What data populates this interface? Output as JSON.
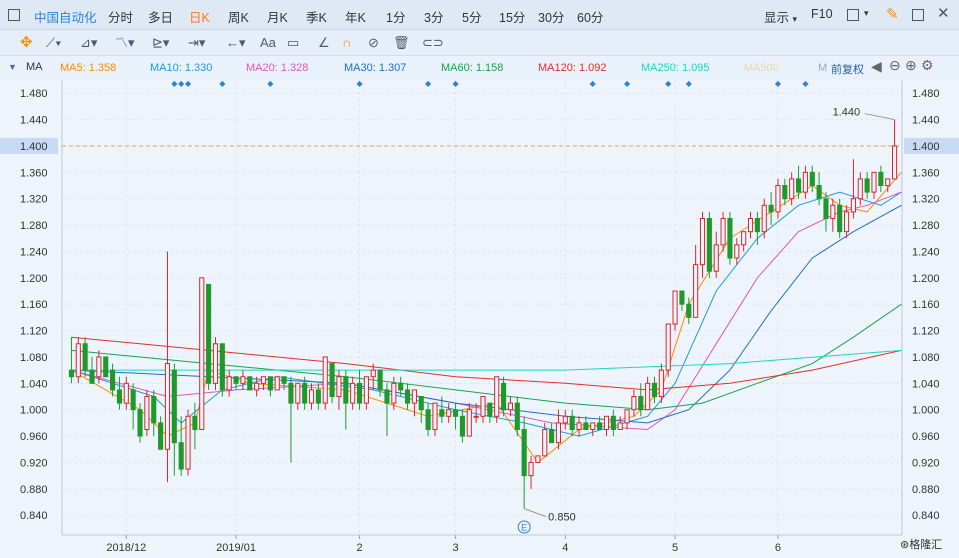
{
  "topbar": {
    "title": "中国自动化",
    "periods": [
      "分时",
      "多日",
      "日K",
      "周K",
      "月K",
      "季K",
      "年K",
      "1分",
      "3分",
      "5分",
      "15分",
      "30分",
      "60分"
    ],
    "active_period": "日K",
    "display_label": "显示",
    "f10_label": "F10"
  },
  "toolbar": {
    "text_tool": "Aa"
  },
  "ma_bar": {
    "indicator": "MA",
    "items": [
      {
        "label": "MA5: 1.358",
        "color": "#ff8a00"
      },
      {
        "label": "MA10: 1.330",
        "color": "#1e9bd7"
      },
      {
        "label": "MA20: 1.328",
        "color": "#e255c0"
      },
      {
        "label": "MA30: 1.307",
        "color": "#1f6fc6"
      },
      {
        "label": "MA60: 1.158",
        "color": "#1aa34a"
      },
      {
        "label": "MA120: 1.092",
        "color": "#e0302a"
      },
      {
        "label": "MA250: 1.095",
        "color": "#1bd6c6"
      },
      {
        "label": "MA500",
        "color": "#e8d8b0"
      },
      {
        "label": "M",
        "color": "#9aa8c0"
      }
    ],
    "adjust_label": "前复权"
  },
  "chart_data": {
    "type": "candlestick",
    "y_ticks": [
      "1.480",
      "1.440",
      "1.400",
      "1.360",
      "1.320",
      "1.280",
      "1.240",
      "1.200",
      "1.160",
      "1.120",
      "1.080",
      "1.040",
      "1.000",
      "0.960",
      "0.920",
      "0.880",
      "0.840"
    ],
    "ylim": [
      0.81,
      1.5
    ],
    "x_labels": [
      "2018/12",
      "2019/01",
      "2",
      "3",
      "4",
      "5",
      "6"
    ],
    "x_label_index": [
      8,
      24,
      42,
      56,
      72,
      88,
      103
    ],
    "ref_line": 1.4,
    "ref_label": "1.400",
    "high_annotation": "1.440",
    "low_annotation": "0.850",
    "event_marker": "E",
    "event_dots_index": [
      15,
      16,
      17,
      22,
      29,
      42,
      52,
      56,
      76,
      81,
      87,
      90,
      103,
      107
    ],
    "candles": [
      [
        1.06,
        1.05,
        1.11,
        1.04
      ],
      [
        1.05,
        1.1,
        1.11,
        1.04
      ],
      [
        1.1,
        1.06,
        1.11,
        1.05
      ],
      [
        1.06,
        1.04,
        1.08,
        1.04
      ],
      [
        1.05,
        1.08,
        1.09,
        1.04
      ],
      [
        1.08,
        1.05,
        1.08,
        1.05
      ],
      [
        1.06,
        1.03,
        1.07,
        1.02
      ],
      [
        1.03,
        1.01,
        1.05,
        1.0
      ],
      [
        1.01,
        1.04,
        1.05,
        1.0
      ],
      [
        1.03,
        1.0,
        1.04,
        0.97
      ],
      [
        1.0,
        0.96,
        1.01,
        0.95
      ],
      [
        0.97,
        1.02,
        1.03,
        0.96
      ],
      [
        1.02,
        0.98,
        1.03,
        0.96
      ],
      [
        0.98,
        0.94,
        0.99,
        0.94
      ],
      [
        0.94,
        1.07,
        1.24,
        0.89
      ],
      [
        1.06,
        0.95,
        1.07,
        0.9
      ],
      [
        0.95,
        0.91,
        0.99,
        0.9
      ],
      [
        0.91,
        0.99,
        1.0,
        0.9
      ],
      [
        0.99,
        0.97,
        1.01,
        0.94
      ],
      [
        0.97,
        1.2,
        1.2,
        0.97
      ],
      [
        1.19,
        1.04,
        1.19,
        1.03
      ],
      [
        1.04,
        1.1,
        1.11,
        1.03
      ],
      [
        1.1,
        1.03,
        1.1,
        1.02
      ],
      [
        1.03,
        1.05,
        1.06,
        1.02
      ],
      [
        1.05,
        1.04,
        1.05,
        1.03
      ],
      [
        1.04,
        1.05,
        1.06,
        1.03
      ],
      [
        1.05,
        1.03,
        1.05,
        1.03
      ],
      [
        1.03,
        1.04,
        1.05,
        1.02
      ],
      [
        1.04,
        1.05,
        1.05,
        1.03
      ],
      [
        1.05,
        1.03,
        1.05,
        1.02
      ],
      [
        1.03,
        1.05,
        1.05,
        1.03
      ],
      [
        1.05,
        1.04,
        1.05,
        1.03
      ],
      [
        1.04,
        1.01,
        1.05,
        0.92
      ],
      [
        1.01,
        1.04,
        1.04,
        1.0
      ],
      [
        1.04,
        1.01,
        1.05,
        1.0
      ],
      [
        1.01,
        1.03,
        1.04,
        1.0
      ],
      [
        1.03,
        1.01,
        1.04,
        1.0
      ],
      [
        1.01,
        1.08,
        1.08,
        1.0
      ],
      [
        1.07,
        1.02,
        1.07,
        1.01
      ],
      [
        1.02,
        1.05,
        1.06,
        1.0
      ],
      [
        1.05,
        1.01,
        1.06,
        0.97
      ],
      [
        1.01,
        1.04,
        1.05,
        1.0
      ],
      [
        1.04,
        1.01,
        1.06,
        1.0
      ],
      [
        1.01,
        1.05,
        1.05,
        1.0
      ],
      [
        1.05,
        1.06,
        1.07,
        1.03
      ],
      [
        1.06,
        1.03,
        1.06,
        1.02
      ],
      [
        1.03,
        1.01,
        1.04,
        0.96
      ],
      [
        1.01,
        1.04,
        1.05,
        1.0
      ],
      [
        1.04,
        1.03,
        1.05,
        1.02
      ],
      [
        1.03,
        1.01,
        1.04,
        1.0
      ],
      [
        1.01,
        1.03,
        1.03,
        0.99
      ],
      [
        1.02,
        1.0,
        1.02,
        0.98
      ],
      [
        1.0,
        0.97,
        1.01,
        0.96
      ],
      [
        0.97,
        1.01,
        1.01,
        0.96
      ],
      [
        1.0,
        0.99,
        1.02,
        0.98
      ],
      [
        0.99,
        1.0,
        1.01,
        0.98
      ],
      [
        1.0,
        0.99,
        1.01,
        0.97
      ],
      [
        0.99,
        0.96,
        1.0,
        0.95
      ],
      [
        0.96,
        1.0,
        1.01,
        0.96
      ],
      [
        0.99,
        0.99,
        1.01,
        0.98
      ],
      [
        0.99,
        1.02,
        1.02,
        0.98
      ],
      [
        1.01,
        0.99,
        1.01,
        0.98
      ],
      [
        0.99,
        1.05,
        1.05,
        0.98
      ],
      [
        1.04,
        1.0,
        1.05,
        0.99
      ],
      [
        1.0,
        1.01,
        1.02,
        0.99
      ],
      [
        1.01,
        0.97,
        1.02,
        0.96
      ],
      [
        0.97,
        0.9,
        0.99,
        0.85
      ],
      [
        0.9,
        0.92,
        0.93,
        0.88
      ],
      [
        0.92,
        0.93,
        0.93,
        0.92
      ],
      [
        0.93,
        0.97,
        0.98,
        0.95
      ],
      [
        0.97,
        0.95,
        0.98,
        0.95
      ],
      [
        0.95,
        0.98,
        1.0,
        0.94
      ],
      [
        0.98,
        0.99,
        1.0,
        0.97
      ],
      [
        0.99,
        0.97,
        1.0,
        0.96
      ],
      [
        0.97,
        0.98,
        0.99,
        0.96
      ],
      [
        0.98,
        0.97,
        0.99,
        0.97
      ],
      [
        0.97,
        0.98,
        0.98,
        0.96
      ],
      [
        0.98,
        0.97,
        0.99,
        0.97
      ],
      [
        0.97,
        0.99,
        0.99,
        0.96
      ],
      [
        0.99,
        0.97,
        1.0,
        0.96
      ],
      [
        0.97,
        0.98,
        0.99,
        0.97
      ],
      [
        0.98,
        1.0,
        1.0,
        0.97
      ],
      [
        1.0,
        1.02,
        1.03,
        0.99
      ],
      [
        1.02,
        1.0,
        1.04,
        0.99
      ],
      [
        1.0,
        1.04,
        1.05,
        1.0
      ],
      [
        1.04,
        1.02,
        1.05,
        1.01
      ],
      [
        1.02,
        1.06,
        1.07,
        1.01
      ],
      [
        1.06,
        1.13,
        1.13,
        1.05
      ],
      [
        1.13,
        1.18,
        1.18,
        1.12
      ],
      [
        1.18,
        1.16,
        1.18,
        1.15
      ],
      [
        1.16,
        1.14,
        1.17,
        1.13
      ],
      [
        1.14,
        1.22,
        1.25,
        1.14
      ],
      [
        1.22,
        1.29,
        1.3,
        1.2
      ],
      [
        1.29,
        1.21,
        1.3,
        1.2
      ],
      [
        1.21,
        1.25,
        1.27,
        1.2
      ],
      [
        1.25,
        1.29,
        1.3,
        1.24
      ],
      [
        1.29,
        1.23,
        1.3,
        1.22
      ],
      [
        1.23,
        1.25,
        1.26,
        1.22
      ],
      [
        1.25,
        1.27,
        1.27,
        1.24
      ],
      [
        1.27,
        1.29,
        1.3,
        1.26
      ],
      [
        1.29,
        1.27,
        1.3,
        1.25
      ],
      [
        1.27,
        1.31,
        1.32,
        1.26
      ],
      [
        1.31,
        1.3,
        1.33,
        1.28
      ],
      [
        1.3,
        1.34,
        1.35,
        1.29
      ],
      [
        1.34,
        1.32,
        1.35,
        1.31
      ],
      [
        1.32,
        1.35,
        1.36,
        1.31
      ],
      [
        1.35,
        1.33,
        1.37,
        1.32
      ],
      [
        1.33,
        1.36,
        1.37,
        1.32
      ],
      [
        1.36,
        1.34,
        1.37,
        1.33
      ],
      [
        1.34,
        1.32,
        1.36,
        1.31
      ],
      [
        1.32,
        1.29,
        1.33,
        1.27
      ],
      [
        1.29,
        1.31,
        1.32,
        1.27
      ],
      [
        1.31,
        1.27,
        1.32,
        1.26
      ],
      [
        1.27,
        1.3,
        1.31,
        1.26
      ],
      [
        1.3,
        1.32,
        1.38,
        1.29
      ],
      [
        1.32,
        1.35,
        1.36,
        1.31
      ],
      [
        1.35,
        1.33,
        1.36,
        1.32
      ],
      [
        1.33,
        1.36,
        1.36,
        1.32
      ],
      [
        1.36,
        1.34,
        1.37,
        1.33
      ],
      [
        1.34,
        1.35,
        1.35,
        1.33
      ],
      [
        1.35,
        1.4,
        1.44,
        1.35
      ]
    ],
    "ma_series": [
      {
        "label": "MA5",
        "color": "#ff8a00",
        "values": [
          [
            0,
            1.06
          ],
          [
            10,
            1.0
          ],
          [
            14,
            0.96
          ],
          [
            18,
            0.98
          ],
          [
            20,
            1.06
          ],
          [
            26,
            1.04
          ],
          [
            40,
            1.03
          ],
          [
            52,
            0.99
          ],
          [
            62,
            1.01
          ],
          [
            68,
            0.92
          ],
          [
            74,
            0.97
          ],
          [
            82,
            0.99
          ],
          [
            86,
            1.03
          ],
          [
            90,
            1.16
          ],
          [
            96,
            1.26
          ],
          [
            102,
            1.3
          ],
          [
            108,
            1.34
          ],
          [
            112,
            1.31
          ],
          [
            116,
            1.3
          ],
          [
            121,
            1.36
          ]
        ]
      },
      {
        "label": "MA10",
        "color": "#1e9bd7",
        "values": [
          [
            0,
            1.06
          ],
          [
            12,
            1.02
          ],
          [
            16,
            0.98
          ],
          [
            22,
            1.03
          ],
          [
            30,
            1.05
          ],
          [
            44,
            1.03
          ],
          [
            56,
            1.0
          ],
          [
            66,
            0.98
          ],
          [
            74,
            0.96
          ],
          [
            84,
            0.99
          ],
          [
            88,
            1.04
          ],
          [
            94,
            1.18
          ],
          [
            100,
            1.26
          ],
          [
            106,
            1.31
          ],
          [
            112,
            1.33
          ],
          [
            118,
            1.31
          ],
          [
            121,
            1.33
          ]
        ]
      },
      {
        "label": "MA20",
        "color": "#e255c0",
        "values": [
          [
            0,
            1.06
          ],
          [
            14,
            1.02
          ],
          [
            24,
            1.03
          ],
          [
            40,
            1.04
          ],
          [
            56,
            1.01
          ],
          [
            70,
            0.98
          ],
          [
            84,
            0.97
          ],
          [
            88,
            1.0
          ],
          [
            94,
            1.1
          ],
          [
            100,
            1.2
          ],
          [
            106,
            1.27
          ],
          [
            112,
            1.3
          ],
          [
            116,
            1.31
          ],
          [
            121,
            1.33
          ]
        ]
      },
      {
        "label": "MA30",
        "color": "#1f6fc6",
        "values": [
          [
            0,
            1.06
          ],
          [
            20,
            1.05
          ],
          [
            40,
            1.04
          ],
          [
            56,
            1.01
          ],
          [
            72,
            0.99
          ],
          [
            84,
            0.98
          ],
          [
            90,
            1.0
          ],
          [
            96,
            1.06
          ],
          [
            102,
            1.15
          ],
          [
            108,
            1.23
          ],
          [
            114,
            1.27
          ],
          [
            121,
            1.31
          ]
        ]
      },
      {
        "label": "MA60",
        "color": "#1aa34a",
        "values": [
          [
            0,
            1.09
          ],
          [
            20,
            1.07
          ],
          [
            40,
            1.05
          ],
          [
            56,
            1.03
          ],
          [
            72,
            1.01
          ],
          [
            84,
            1.0
          ],
          [
            92,
            1.01
          ],
          [
            100,
            1.04
          ],
          [
            108,
            1.07
          ],
          [
            114,
            1.11
          ],
          [
            121,
            1.16
          ]
        ]
      },
      {
        "label": "MA120",
        "color": "#e0302a",
        "values": [
          [
            0,
            1.11
          ],
          [
            20,
            1.09
          ],
          [
            40,
            1.07
          ],
          [
            56,
            1.05
          ],
          [
            72,
            1.04
          ],
          [
            84,
            1.03
          ],
          [
            96,
            1.04
          ],
          [
            108,
            1.06
          ],
          [
            121,
            1.09
          ]
        ]
      },
      {
        "label": "MA250",
        "color": "#1bd6c6",
        "values": [
          [
            0,
            1.06
          ],
          [
            40,
            1.06
          ],
          [
            72,
            1.06
          ],
          [
            96,
            1.07
          ],
          [
            121,
            1.09
          ]
        ]
      }
    ]
  }
}
